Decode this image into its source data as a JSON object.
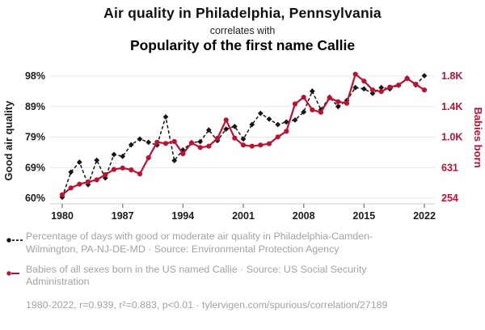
{
  "header": {
    "title": "Air quality in Philadelphia, Pennsylvania",
    "connector": "correlates with",
    "subtitle": "Popularity of the first name Callie"
  },
  "chart_data": {
    "type": "line",
    "x": [
      1980,
      1981,
      1982,
      1983,
      1984,
      1985,
      1986,
      1987,
      1988,
      1989,
      1990,
      1991,
      1992,
      1993,
      1994,
      1995,
      1996,
      1997,
      1998,
      1999,
      2000,
      2001,
      2002,
      2003,
      2004,
      2005,
      2006,
      2007,
      2008,
      2009,
      2010,
      2011,
      2012,
      2013,
      2014,
      2015,
      2016,
      2017,
      2018,
      2019,
      2020,
      2021,
      2022
    ],
    "x_ticks": [
      1980,
      1987,
      1994,
      2001,
      2008,
      2015,
      2022
    ],
    "left_axis": {
      "label": "Good air quality",
      "range": [
        60,
        98
      ],
      "ticks": [
        {
          "label": "98%",
          "value": 98
        },
        {
          "label": "89%",
          "value": 88.5
        },
        {
          "label": "79%",
          "value": 79
        },
        {
          "label": "69%",
          "value": 69.5
        },
        {
          "label": "60%",
          "value": 60
        }
      ]
    },
    "right_axis": {
      "label": "Babies born",
      "range": [
        254,
        1762
      ],
      "ticks": [
        {
          "label": "1.8K",
          "value": 1762
        },
        {
          "label": "1.4K",
          "value": 1385
        },
        {
          "label": "1.0K",
          "value": 1008
        },
        {
          "label": "631",
          "value": 631
        },
        {
          "label": "254",
          "value": 254
        }
      ]
    },
    "series": [
      {
        "name": "Percentage of days with good or moderate air quality",
        "axis": "left",
        "style": "dashed-diamond",
        "color": "#161616",
        "values": [
          60.3,
          68.1,
          71.2,
          64.2,
          71.8,
          66.3,
          73.6,
          73.0,
          76.6,
          78.4,
          77.4,
          76.5,
          85.3,
          71.7,
          75.0,
          77.3,
          77.6,
          81.2,
          77.9,
          81.5,
          82.3,
          78.4,
          82.9,
          86.4,
          84.6,
          82.9,
          83.7,
          84.3,
          86.8,
          93.3,
          87.5,
          91.4,
          88.5,
          90.4,
          94.4,
          94.0,
          92.6,
          94.4,
          94.0,
          95.1,
          97.4,
          95.2,
          98.1
        ]
      },
      {
        "name": "Babies of all sexes born in the US named Callie",
        "axis": "right",
        "style": "solid-circle",
        "color": "#c01031",
        "values": [
          297,
          381,
          427,
          455,
          481,
          545,
          610,
          627,
          604,
          554,
          753,
          945,
          930,
          953,
          803,
          936,
          880,
          896,
          993,
          1220,
          996,
          910,
          896,
          910,
          926,
          1010,
          1080,
          1417,
          1500,
          1345,
          1315,
          1493,
          1445,
          1425,
          1785,
          1700,
          1590,
          1570,
          1625,
          1650,
          1730,
          1660,
          1590
        ]
      }
    ],
    "grid": true,
    "legend_position": "below"
  },
  "legend": {
    "items": [
      {
        "marker": "black-dashed-dot",
        "text": "Percentage of days with good or moderate air quality in Philadelphia-Camden-Wilmington, PA-NJ-DE-MD · Source: Environmental Protection Agency"
      },
      {
        "marker": "red-solid-dot",
        "text": "Babies of all sexes born in the US named Callie · Source: US Social Security Administration"
      }
    ],
    "footnote": "1980-2022, r=0.939, r²=0.883, p<0.01 · tylervigen.com/spurious/correlation/27189"
  },
  "colors": {
    "accent_red": "#c01031",
    "series_black": "#161616",
    "legend_gray": "#a2a2a2",
    "grid": "#e8e8e8",
    "axis_line": "#cccccc",
    "tick_mark": "#8a8a8a"
  }
}
